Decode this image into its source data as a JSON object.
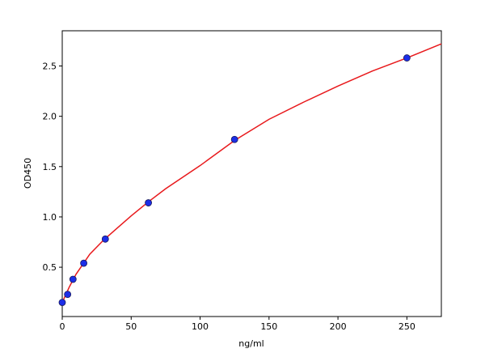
{
  "chart_data": {
    "type": "scatter",
    "xlabel": "ng/ml",
    "ylabel": "OD450",
    "xlim": [
      0,
      275
    ],
    "ylim": [
      0.01,
      2.85
    ],
    "xticks": [
      0,
      50,
      100,
      150,
      200,
      250
    ],
    "yticks": [
      0.5,
      {
        "value": 1,
        "label": "1.0"
      },
      1.5,
      {
        "value": 2,
        "label": "2.0"
      },
      2.5
    ],
    "series": [
      {
        "type": "line",
        "color": "#e8191c",
        "x": [
          0,
          5,
          10,
          20,
          30,
          40,
          50,
          62.5,
          75,
          100,
          125,
          150,
          175,
          200,
          225,
          250,
          275
        ],
        "values": [
          0.15,
          0.3,
          0.43,
          0.63,
          0.77,
          0.89,
          1.01,
          1.15,
          1.28,
          1.51,
          1.76,
          1.97,
          2.14,
          2.3,
          2.45,
          2.58,
          2.72
        ]
      },
      {
        "type": "scatter",
        "color": "#1c2ee8",
        "x": [
          0,
          3.9,
          7.8,
          15.6,
          31.25,
          62.5,
          125,
          250
        ],
        "values": [
          0.15,
          0.23,
          0.38,
          0.54,
          0.78,
          1.14,
          1.77,
          2.58
        ]
      }
    ]
  }
}
